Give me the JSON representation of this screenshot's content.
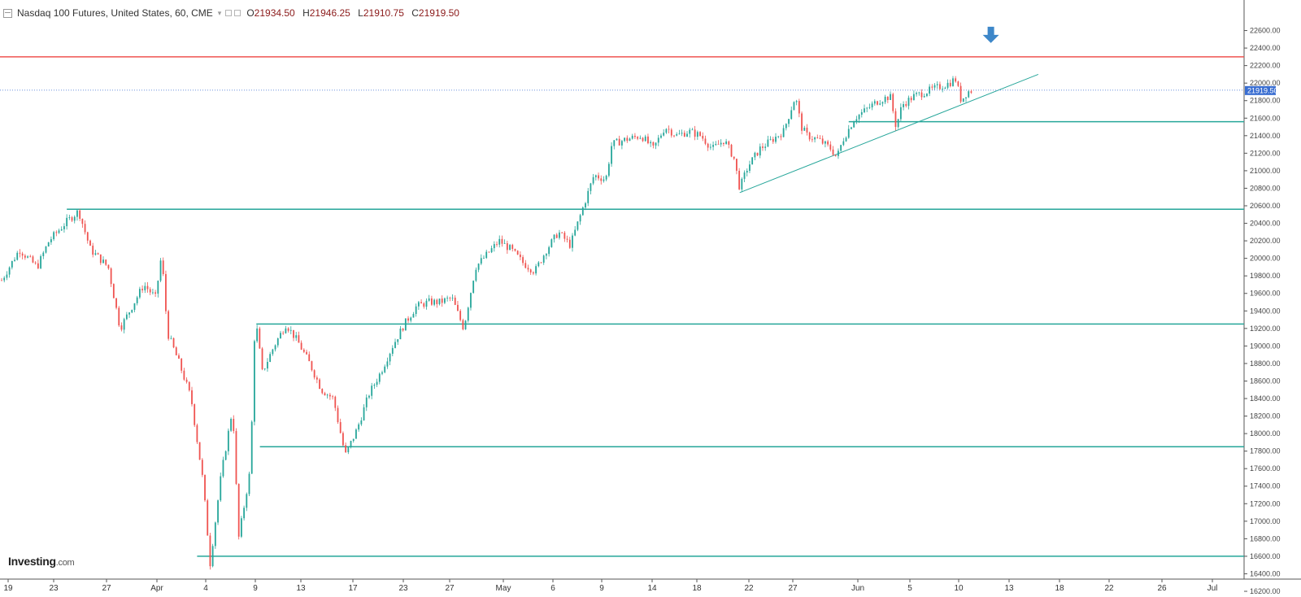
{
  "header": {
    "title": "Nasdaq 100 Futures, United States, 60, CME",
    "open_label": "O",
    "open": "21934.50",
    "high_label": "H",
    "high": "21946.25",
    "low_label": "L",
    "low": "21910.75",
    "close_label": "C",
    "close": "21919.50"
  },
  "branding": {
    "logo": "Investing",
    "logo_suffix": ".com"
  },
  "colors": {
    "up": "#26a69a",
    "down": "#ef5350",
    "support_line": "#26a69a",
    "resistance_line": "#ef5350",
    "price_line": "#3a6ed1",
    "arrow": "#3d87c9"
  },
  "icons": [
    "window-icon",
    "chevron-down-icon",
    "settings-square-icon",
    "down-arrow-icon"
  ],
  "chart_data": {
    "type": "candlestick",
    "title": "Nasdaq 100 Futures, United States, 60, CME",
    "y_axis": {
      "position": "right",
      "ylim": [
        16200,
        22800
      ],
      "ticks": [
        16200,
        16400,
        16600,
        16800,
        17000,
        17200,
        17400,
        17600,
        17800,
        18000,
        18200,
        18400,
        18600,
        18800,
        19000,
        19200,
        19400,
        19600,
        19800,
        20000,
        20200,
        20400,
        20600,
        20800,
        21000,
        21200,
        21400,
        21600,
        21800,
        22000,
        22200,
        22400,
        22600
      ]
    },
    "x_axis": {
      "labels": [
        "19",
        "23",
        "27",
        "Apr",
        "4",
        "9",
        "13",
        "17",
        "23",
        "27",
        "May",
        "6",
        "9",
        "14",
        "18",
        "22",
        "27",
        "Jun",
        "5",
        "10",
        "13",
        "18",
        "22",
        "26",
        "Jul"
      ]
    },
    "current_price": 21919.5,
    "price_path": [
      {
        "d": 0,
        "v": 19750
      },
      {
        "d": 1.5,
        "v": 20100
      },
      {
        "d": 3,
        "v": 19900
      },
      {
        "d": 4,
        "v": 20200
      },
      {
        "d": 5.5,
        "v": 20420
      },
      {
        "d": 6.5,
        "v": 20540
      },
      {
        "d": 7.5,
        "v": 20100
      },
      {
        "d": 9,
        "v": 19900
      },
      {
        "d": 10,
        "v": 19200
      },
      {
        "d": 11,
        "v": 19450
      },
      {
        "d": 12,
        "v": 19700
      },
      {
        "d": 13,
        "v": 19550
      },
      {
        "d": 13.5,
        "v": 20050
      },
      {
        "d": 14,
        "v": 19150
      },
      {
        "d": 15,
        "v": 18800
      },
      {
        "d": 16,
        "v": 18400
      },
      {
        "d": 17,
        "v": 17450
      },
      {
        "d": 17.6,
        "v": 16520
      },
      {
        "d": 18.5,
        "v": 17500
      },
      {
        "d": 19.5,
        "v": 18300
      },
      {
        "d": 20,
        "v": 16800
      },
      {
        "d": 21,
        "v": 17600
      },
      {
        "d": 21.4,
        "v": 19350
      },
      {
        "d": 22,
        "v": 18700
      },
      {
        "d": 23,
        "v": 19000
      },
      {
        "d": 24,
        "v": 19250
      },
      {
        "d": 25,
        "v": 19050
      },
      {
        "d": 26,
        "v": 18800
      },
      {
        "d": 27,
        "v": 18500
      },
      {
        "d": 28,
        "v": 18400
      },
      {
        "d": 29,
        "v": 17750
      },
      {
        "d": 30,
        "v": 18050
      },
      {
        "d": 31,
        "v": 18450
      },
      {
        "d": 32,
        "v": 18700
      },
      {
        "d": 33,
        "v": 19000
      },
      {
        "d": 34,
        "v": 19250
      },
      {
        "d": 35,
        "v": 19450
      },
      {
        "d": 36,
        "v": 19500
      },
      {
        "d": 37,
        "v": 19500
      },
      {
        "d": 38,
        "v": 19550
      },
      {
        "d": 39,
        "v": 19200
      },
      {
        "d": 40,
        "v": 19900
      },
      {
        "d": 41,
        "v": 20050
      },
      {
        "d": 42,
        "v": 20200
      },
      {
        "d": 43,
        "v": 20100
      },
      {
        "d": 44,
        "v": 19950
      },
      {
        "d": 45,
        "v": 19850
      },
      {
        "d": 46,
        "v": 20100
      },
      {
        "d": 47,
        "v": 20300
      },
      {
        "d": 48,
        "v": 20150
      },
      {
        "d": 49,
        "v": 20550
      },
      {
        "d": 50,
        "v": 20950
      },
      {
        "d": 51,
        "v": 20900
      },
      {
        "d": 51.5,
        "v": 21300
      },
      {
        "d": 52.5,
        "v": 21350
      },
      {
        "d": 54,
        "v": 21400
      },
      {
        "d": 55,
        "v": 21250
      },
      {
        "d": 56,
        "v": 21500
      },
      {
        "d": 57,
        "v": 21400
      },
      {
        "d": 58,
        "v": 21450
      },
      {
        "d": 59,
        "v": 21400
      },
      {
        "d": 60,
        "v": 21250
      },
      {
        "d": 61,
        "v": 21350
      },
      {
        "d": 61.8,
        "v": 21150
      },
      {
        "d": 62.3,
        "v": 20800
      },
      {
        "d": 63,
        "v": 21050
      },
      {
        "d": 64,
        "v": 21250
      },
      {
        "d": 65,
        "v": 21350
      },
      {
        "d": 66,
        "v": 21450
      },
      {
        "d": 67,
        "v": 21850
      },
      {
        "d": 67.5,
        "v": 21500
      },
      {
        "d": 68,
        "v": 21400
      },
      {
        "d": 69,
        "v": 21350
      },
      {
        "d": 70,
        "v": 21250
      },
      {
        "d": 70.5,
        "v": 21150
      },
      {
        "d": 71,
        "v": 21350
      },
      {
        "d": 72,
        "v": 21600
      },
      {
        "d": 73,
        "v": 21700
      },
      {
        "d": 74,
        "v": 21800
      },
      {
        "d": 75,
        "v": 21850
      },
      {
        "d": 75.5,
        "v": 21500
      },
      {
        "d": 76,
        "v": 21750
      },
      {
        "d": 77,
        "v": 21850
      },
      {
        "d": 78,
        "v": 21900
      },
      {
        "d": 79,
        "v": 21950
      },
      {
        "d": 80,
        "v": 22000
      },
      {
        "d": 80.5,
        "v": 22050
      },
      {
        "d": 81,
        "v": 21800
      },
      {
        "d": 81.5,
        "v": 21900
      },
      {
        "d": 82,
        "v": 21920
      }
    ],
    "drawings": {
      "resistance": {
        "value": 22300,
        "color": "red"
      },
      "supports": [
        {
          "value": 21560,
          "from_d": 71.5
        },
        {
          "value": 20560,
          "from_d": 5.5
        },
        {
          "value": 19250,
          "from_d": 21.5
        },
        {
          "value": 17850,
          "from_d": 21.8
        },
        {
          "value": 16600,
          "from_d": 16.5
        }
      ],
      "trendline": {
        "d1": 62.3,
        "v1": 20750,
        "d2": 87.5,
        "v2": 22100
      },
      "marker": {
        "type": "down-arrow",
        "d": 83.5,
        "v": 22550
      }
    }
  }
}
